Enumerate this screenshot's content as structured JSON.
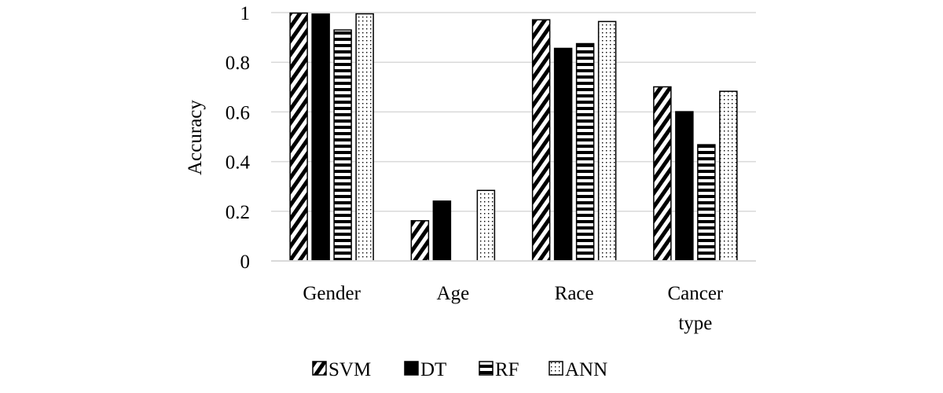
{
  "chart_data": {
    "type": "bar",
    "categories": [
      [
        "Gender"
      ],
      [
        "Age"
      ],
      [
        "Race"
      ],
      [
        "Cancer",
        "type"
      ]
    ],
    "series": [
      {
        "name": "SVM",
        "values": [
          0.998,
          0.162,
          0.971,
          0.701
        ],
        "pattern": "diagonal",
        "color": "#000000"
      },
      {
        "name": "DT",
        "values": [
          0.994,
          0.241,
          0.856,
          0.601
        ],
        "pattern": "solid",
        "color": "#000000"
      },
      {
        "name": "RF",
        "values": [
          0.93,
          0.0,
          0.875,
          0.468
        ],
        "pattern": "horizontal",
        "color": "#000000"
      },
      {
        "name": "ANN",
        "values": [
          0.995,
          0.284,
          0.964,
          0.683
        ],
        "pattern": "dots",
        "color": "#000000"
      }
    ],
    "ylabel": "Accuracy",
    "xlabel": "",
    "ylim": [
      0,
      1
    ],
    "yticks": [
      0,
      0.2,
      0.4,
      0.6,
      0.8,
      1
    ],
    "ytick_labels": [
      "0",
      "0.2",
      "0.4",
      "0.6",
      "0.8",
      "1"
    ],
    "grid": true,
    "gridline_color": "#d9d9d9",
    "legend": "bottom"
  }
}
